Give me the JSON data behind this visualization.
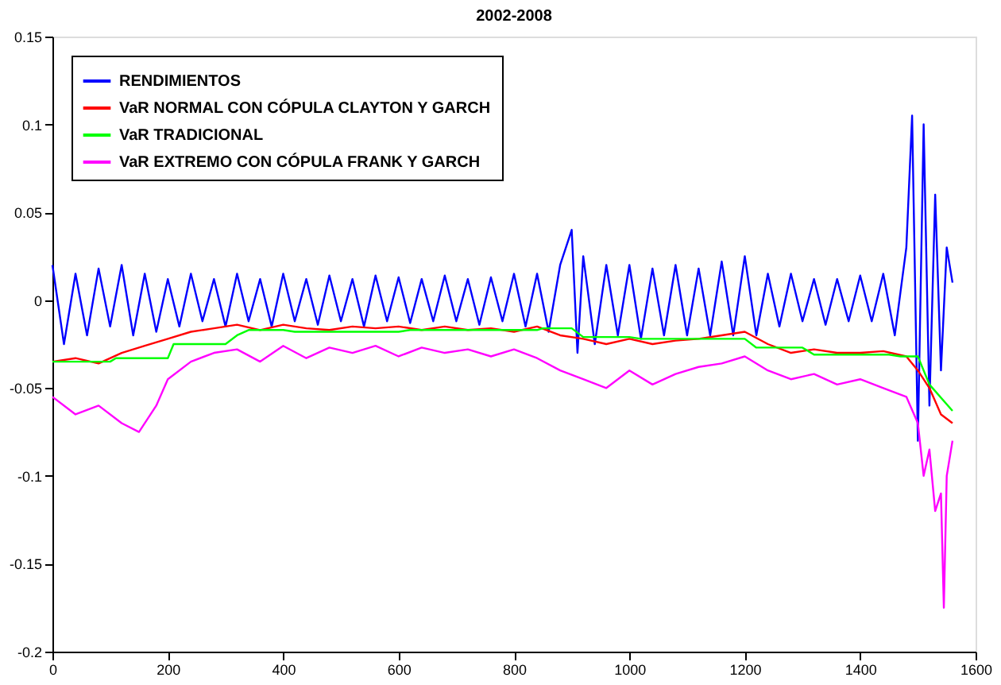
{
  "chart_data": {
    "type": "line",
    "title": "2002-2008",
    "xlim": [
      0,
      1600
    ],
    "xticks": [
      0,
      200,
      400,
      600,
      800,
      1000,
      1200,
      1400,
      1600
    ],
    "ylim": [
      -0.2,
      0.15
    ],
    "yticks": [
      -0.2,
      -0.15,
      -0.1,
      -0.05,
      0,
      0.05,
      0.1,
      0.15
    ],
    "grid": false,
    "legend": "top left",
    "line_style": "solid",
    "marker": "none",
    "series": [
      {
        "name": "RENDIMIENTOS",
        "color": "#0000ff",
        "x": [
          0,
          20,
          40,
          60,
          80,
          100,
          120,
          140,
          160,
          180,
          200,
          220,
          240,
          260,
          280,
          300,
          320,
          340,
          360,
          380,
          400,
          420,
          440,
          460,
          480,
          500,
          520,
          540,
          560,
          580,
          600,
          620,
          640,
          660,
          680,
          700,
          720,
          740,
          760,
          780,
          800,
          820,
          840,
          860,
          880,
          900,
          910,
          920,
          940,
          960,
          980,
          1000,
          1020,
          1040,
          1060,
          1080,
          1100,
          1120,
          1140,
          1160,
          1180,
          1200,
          1220,
          1240,
          1260,
          1280,
          1300,
          1320,
          1340,
          1360,
          1380,
          1400,
          1420,
          1440,
          1460,
          1480,
          1490,
          1500,
          1510,
          1520,
          1530,
          1540,
          1550,
          1560
        ],
        "values": [
          0.02,
          -0.025,
          0.015,
          -0.02,
          0.018,
          -0.015,
          0.02,
          -0.02,
          0.015,
          -0.018,
          0.012,
          -0.015,
          0.015,
          -0.012,
          0.012,
          -0.015,
          0.015,
          -0.012,
          0.012,
          -0.015,
          0.015,
          -0.012,
          0.012,
          -0.014,
          0.014,
          -0.012,
          0.012,
          -0.015,
          0.014,
          -0.012,
          0.013,
          -0.013,
          0.012,
          -0.012,
          0.014,
          -0.012,
          0.012,
          -0.014,
          0.013,
          -0.012,
          0.015,
          -0.015,
          0.015,
          -0.018,
          0.02,
          0.04,
          -0.03,
          0.025,
          -0.025,
          0.02,
          -0.02,
          0.02,
          -0.022,
          0.018,
          -0.02,
          0.02,
          -0.02,
          0.018,
          -0.02,
          0.022,
          -0.02,
          0.025,
          -0.02,
          0.015,
          -0.015,
          0.015,
          -0.012,
          0.012,
          -0.014,
          0.012,
          -0.012,
          0.014,
          -0.012,
          0.015,
          -0.02,
          0.03,
          0.105,
          -0.08,
          0.1,
          -0.06,
          0.06,
          -0.04,
          0.03,
          0.01
        ]
      },
      {
        "name": "VaR NORMAL CON CÓPULA CLAYTON Y GARCH",
        "color": "#ff0000",
        "x": [
          0,
          40,
          80,
          120,
          160,
          200,
          240,
          280,
          320,
          360,
          400,
          440,
          480,
          520,
          560,
          600,
          640,
          680,
          720,
          760,
          800,
          840,
          880,
          920,
          960,
          1000,
          1040,
          1080,
          1120,
          1160,
          1200,
          1240,
          1280,
          1320,
          1360,
          1400,
          1440,
          1480,
          1500,
          1520,
          1540,
          1560
        ],
        "values": [
          -0.035,
          -0.033,
          -0.036,
          -0.03,
          -0.026,
          -0.022,
          -0.018,
          -0.016,
          -0.014,
          -0.017,
          -0.014,
          -0.016,
          -0.017,
          -0.015,
          -0.016,
          -0.015,
          -0.017,
          -0.015,
          -0.017,
          -0.016,
          -0.018,
          -0.015,
          -0.02,
          -0.022,
          -0.025,
          -0.022,
          -0.025,
          -0.023,
          -0.022,
          -0.02,
          -0.018,
          -0.025,
          -0.03,
          -0.028,
          -0.03,
          -0.03,
          -0.029,
          -0.032,
          -0.04,
          -0.05,
          -0.065,
          -0.07
        ]
      },
      {
        "name": "VaR TRADICIONAL",
        "color": "#00ff00",
        "x": [
          0,
          100,
          110,
          200,
          210,
          300,
          320,
          340,
          400,
          420,
          600,
          620,
          800,
          840,
          850,
          900,
          920,
          1000,
          1020,
          1200,
          1220,
          1300,
          1320,
          1450,
          1470,
          1500,
          1520,
          1560
        ],
        "values": [
          -0.035,
          -0.035,
          -0.033,
          -0.033,
          -0.025,
          -0.025,
          -0.02,
          -0.017,
          -0.017,
          -0.018,
          -0.018,
          -0.017,
          -0.017,
          -0.017,
          -0.016,
          -0.016,
          -0.021,
          -0.021,
          -0.022,
          -0.022,
          -0.027,
          -0.027,
          -0.031,
          -0.031,
          -0.032,
          -0.032,
          -0.048,
          -0.063
        ]
      },
      {
        "name": "VaR EXTREMO CON CÓPULA FRANK Y GARCH",
        "color": "#ff00ff",
        "x": [
          0,
          40,
          80,
          120,
          150,
          180,
          200,
          240,
          280,
          320,
          360,
          400,
          440,
          480,
          520,
          560,
          600,
          640,
          680,
          720,
          760,
          800,
          840,
          880,
          920,
          960,
          1000,
          1040,
          1080,
          1120,
          1160,
          1200,
          1240,
          1280,
          1320,
          1360,
          1400,
          1440,
          1480,
          1500,
          1510,
          1520,
          1530,
          1540,
          1545,
          1550,
          1560
        ],
        "values": [
          -0.055,
          -0.065,
          -0.06,
          -0.07,
          -0.075,
          -0.06,
          -0.045,
          -0.035,
          -0.03,
          -0.028,
          -0.035,
          -0.026,
          -0.033,
          -0.027,
          -0.03,
          -0.026,
          -0.032,
          -0.027,
          -0.03,
          -0.028,
          -0.032,
          -0.028,
          -0.033,
          -0.04,
          -0.045,
          -0.05,
          -0.04,
          -0.048,
          -0.042,
          -0.038,
          -0.036,
          -0.032,
          -0.04,
          -0.045,
          -0.042,
          -0.048,
          -0.045,
          -0.05,
          -0.055,
          -0.07,
          -0.1,
          -0.085,
          -0.12,
          -0.11,
          -0.175,
          -0.1,
          -0.08
        ]
      }
    ]
  }
}
